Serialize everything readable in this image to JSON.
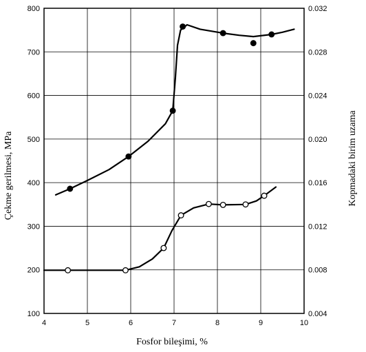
{
  "chart_data": {
    "type": "line",
    "xlabel": "Fosfor bileşimi, %",
    "ylabel_left": "Çekme gerilmesi, MPa",
    "ylabel_right": "Kopmadaki birim uzama",
    "xlim": [
      4,
      10
    ],
    "ylim_left": [
      100,
      800
    ],
    "ylim_right": [
      0.004,
      0.032
    ],
    "grid": true,
    "x_ticks": [
      "4",
      "5",
      "6",
      "7",
      "8",
      "9",
      "10"
    ],
    "y_left_ticks": [
      "100",
      "200",
      "300",
      "400",
      "500",
      "600",
      "700",
      "800"
    ],
    "y_right_ticks": [
      "0.004",
      "0.008",
      "0.012",
      "0.016",
      "0.020",
      "0.024",
      "0.028",
      "0.032"
    ],
    "series": [
      {
        "axis": "left",
        "marker": "filled",
        "points": [
          [
            4.6,
            386
          ],
          [
            5.95,
            460
          ],
          [
            6.97,
            565
          ],
          [
            7.2,
            758
          ],
          [
            8.13,
            743
          ],
          [
            8.83,
            720
          ],
          [
            9.25,
            740
          ]
        ],
        "curve": [
          [
            4.27,
            372
          ],
          [
            4.6,
            386
          ],
          [
            5.0,
            405
          ],
          [
            5.5,
            430
          ],
          [
            5.95,
            460
          ],
          [
            6.4,
            495
          ],
          [
            6.8,
            535
          ],
          [
            6.97,
            565
          ],
          [
            7.03,
            640
          ],
          [
            7.08,
            715
          ],
          [
            7.15,
            750
          ],
          [
            7.3,
            762
          ],
          [
            7.6,
            752
          ],
          [
            8.13,
            743
          ],
          [
            8.5,
            738
          ],
          [
            8.83,
            735
          ],
          [
            9.25,
            740
          ],
          [
            9.5,
            745
          ],
          [
            9.77,
            752
          ]
        ]
      },
      {
        "axis": "left",
        "marker": "open",
        "points": [
          [
            4.55,
            199
          ],
          [
            5.88,
            199
          ],
          [
            6.76,
            250
          ],
          [
            7.16,
            325
          ],
          [
            7.8,
            351
          ],
          [
            8.13,
            349
          ],
          [
            8.65,
            350
          ],
          [
            9.08,
            370
          ]
        ],
        "curve": [
          [
            4.0,
            199
          ],
          [
            4.55,
            199
          ],
          [
            5.5,
            199
          ],
          [
            5.88,
            199
          ],
          [
            6.2,
            207
          ],
          [
            6.5,
            225
          ],
          [
            6.76,
            250
          ],
          [
            6.95,
            290
          ],
          [
            7.16,
            325
          ],
          [
            7.45,
            342
          ],
          [
            7.8,
            351
          ],
          [
            8.13,
            349
          ],
          [
            8.65,
            350
          ],
          [
            8.9,
            358
          ],
          [
            9.08,
            370
          ],
          [
            9.35,
            390
          ]
        ]
      }
    ]
  }
}
